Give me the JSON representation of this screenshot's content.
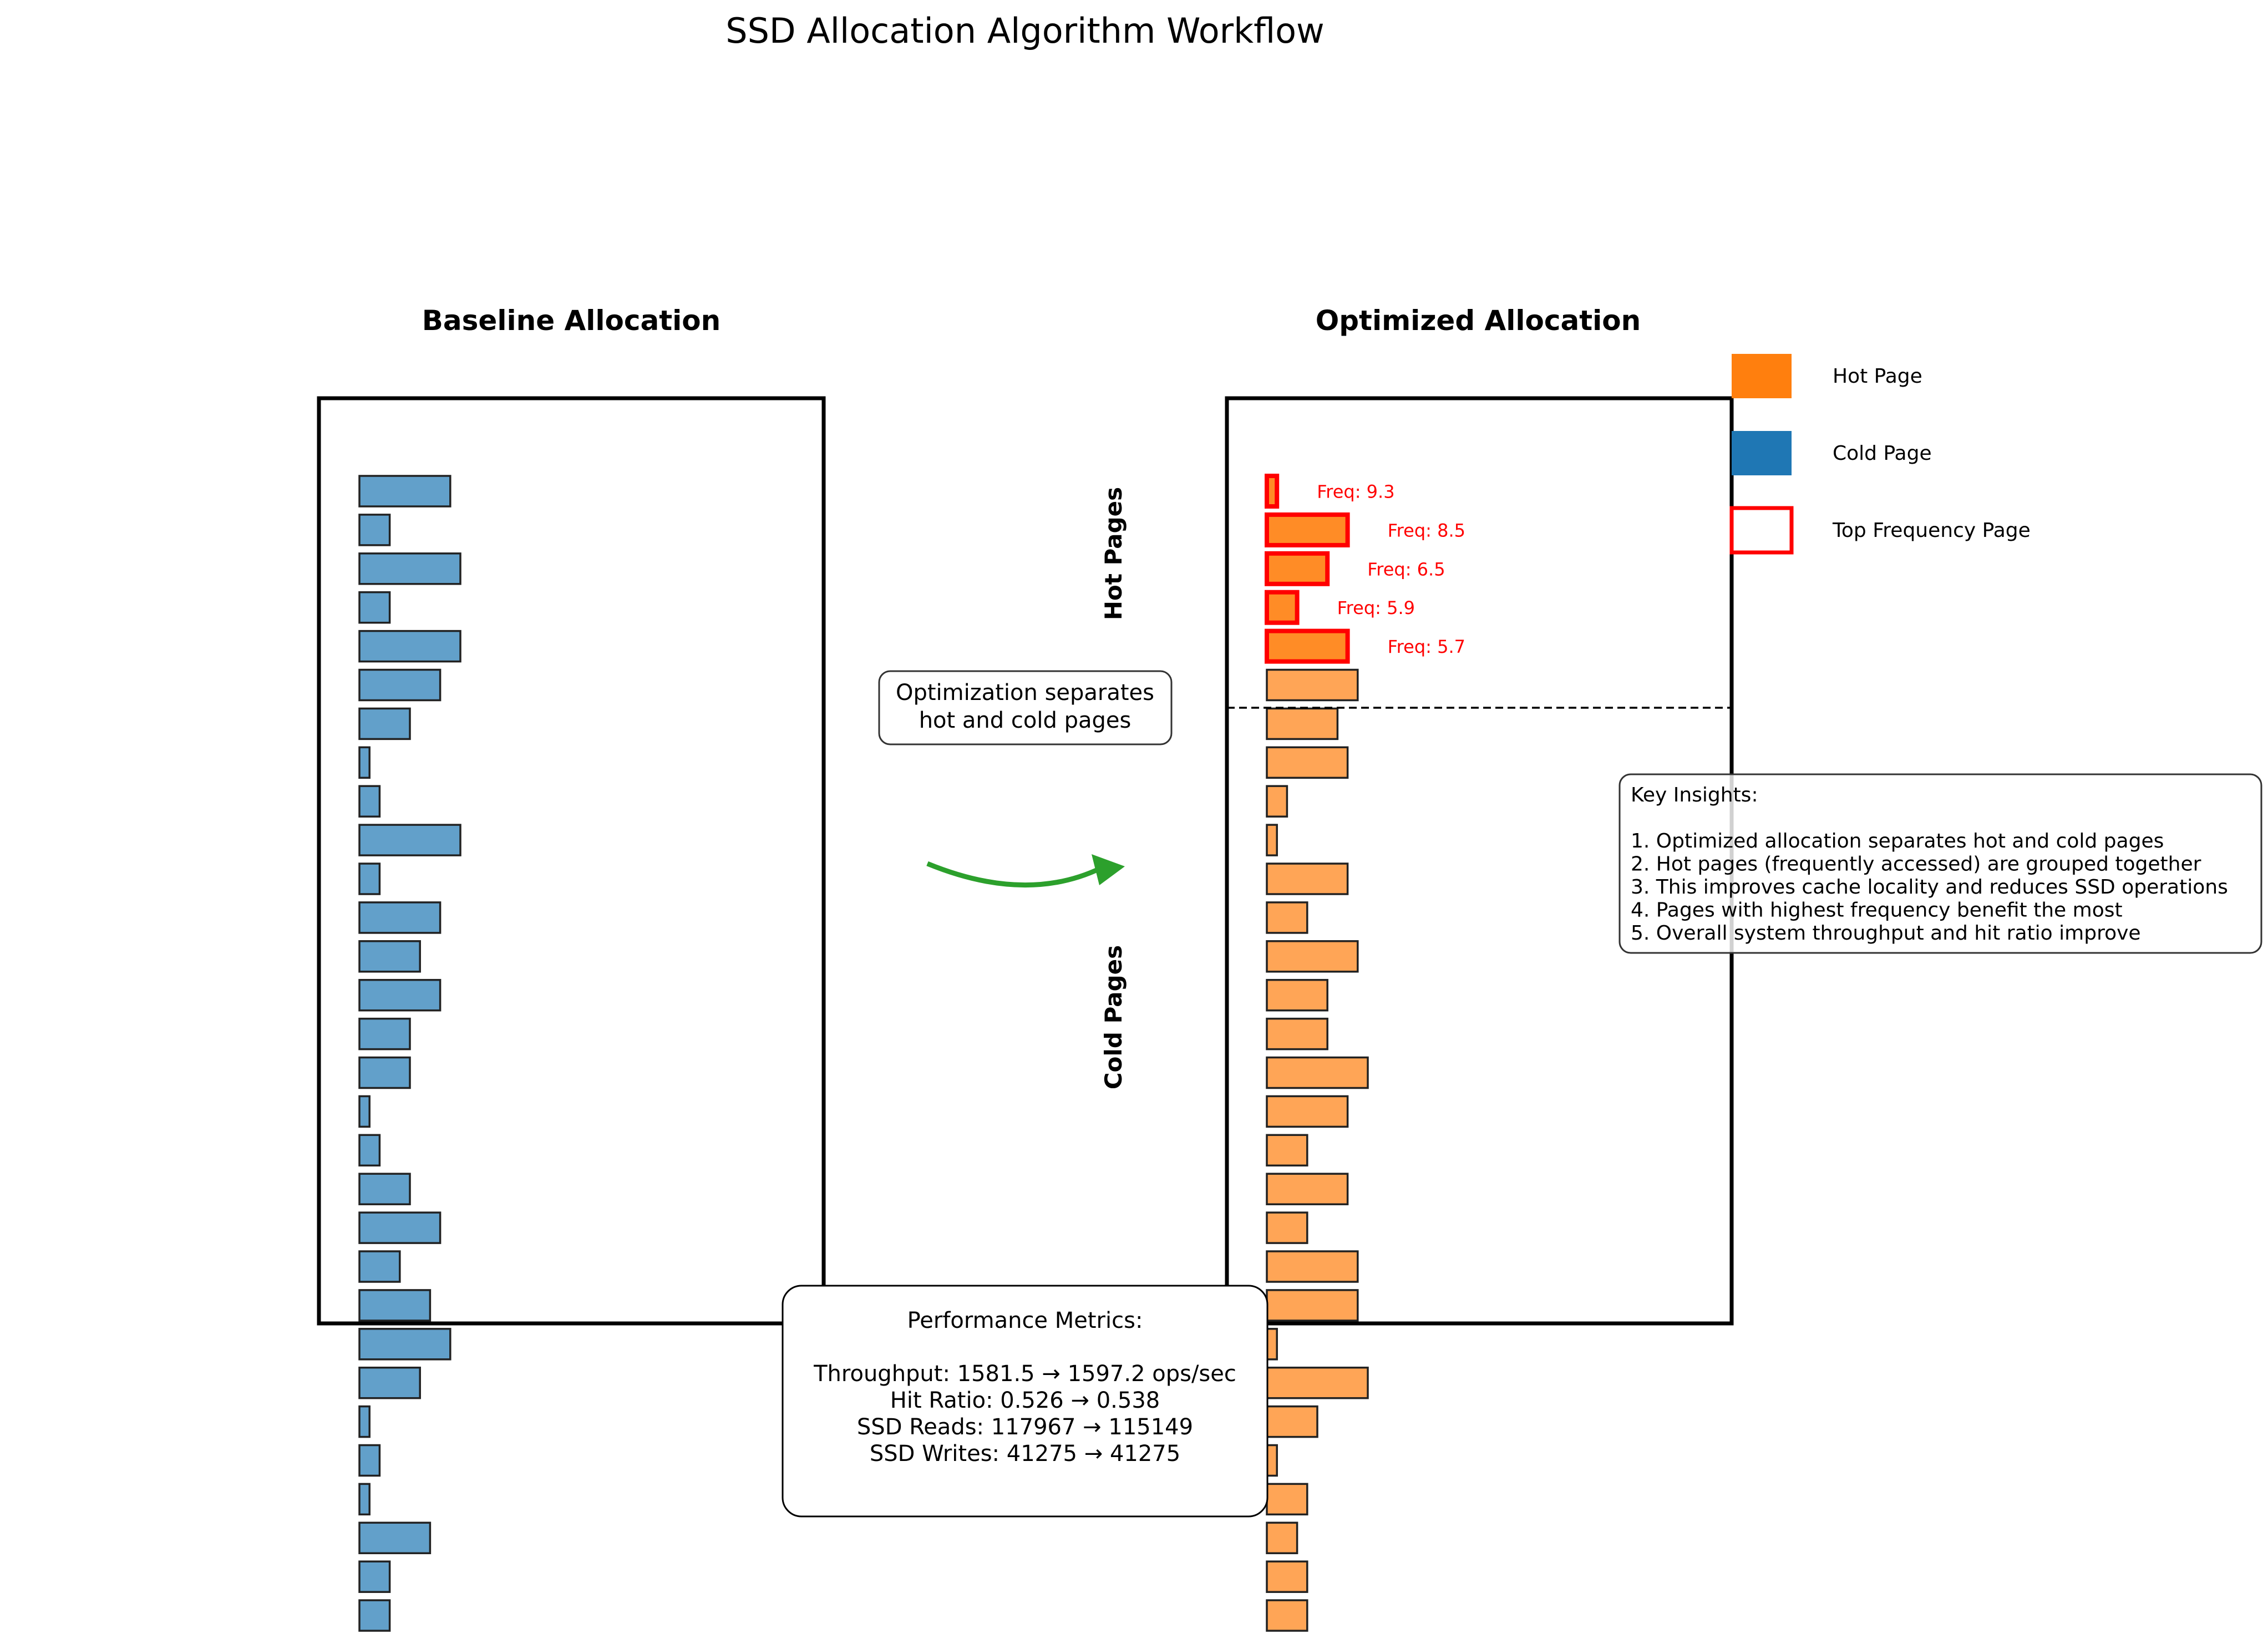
{
  "title": "SSD Allocation Algorithm Workflow",
  "baseline": {
    "heading": "Baseline Allocation",
    "widths": [
      9,
      3,
      10,
      3,
      10,
      8,
      5,
      1,
      2,
      10,
      2,
      8,
      6,
      8,
      5,
      5,
      1,
      2,
      5,
      8,
      4,
      7,
      9,
      6,
      1,
      2,
      1,
      7,
      3,
      3
    ]
  },
  "optimized": {
    "heading": "Optimized Allocation",
    "hot_label": "Hot Pages",
    "cold_label": "Cold Pages",
    "top_pages": [
      {
        "width": 1,
        "label": "Freq: 9.3"
      },
      {
        "width": 8,
        "label": "Freq: 8.5"
      },
      {
        "width": 6,
        "label": "Freq: 6.5"
      },
      {
        "width": 3,
        "label": "Freq: 5.9"
      },
      {
        "width": 8,
        "label": "Freq: 5.7"
      }
    ],
    "other_widths": [
      9,
      7,
      8,
      2,
      1,
      8,
      4,
      9,
      6,
      6,
      10,
      8,
      4,
      8,
      4,
      9,
      9,
      1,
      10,
      5,
      1,
      4,
      3,
      4,
      4
    ]
  },
  "arrow_note": [
    "Optimization separates",
    "hot and cold pages"
  ],
  "legend": [
    {
      "label": "Hot Page",
      "kind": "hot"
    },
    {
      "label": "Cold Page",
      "kind": "cold"
    },
    {
      "label": "Top Frequency Page",
      "kind": "top"
    }
  ],
  "insights": [
    "Key Insights:",
    "",
    "1. Optimized allocation separates hot and cold pages",
    "2. Hot pages (frequently accessed) are grouped together",
    "3. This improves cache locality and reduces SSD operations",
    "4. Pages with highest frequency benefit the most",
    "5. Overall system throughput and hit ratio improve"
  ],
  "metrics": [
    "Performance Metrics:",
    "",
    "Throughput: 1581.5 → 1597.2 ops/sec",
    "Hit Ratio: 0.526 → 0.538",
    "SSD Reads: 117967 → 115149",
    "SSD Writes: 41275 → 41275"
  ],
  "colors": {
    "cold": "#1f77b4",
    "hot": "#ff7f0e",
    "highlight": "#ff0000",
    "arrow": "#2ca02c",
    "frame": "#000000"
  }
}
